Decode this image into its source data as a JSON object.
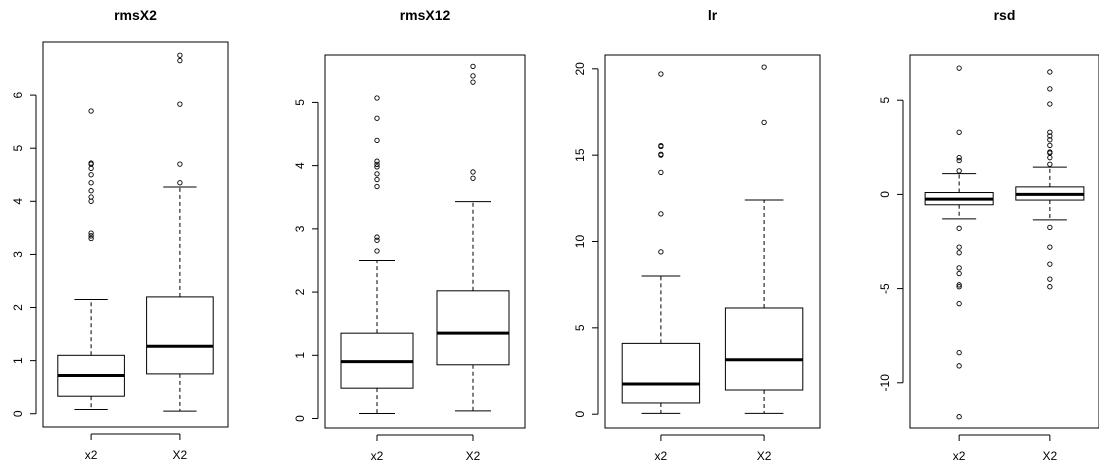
{
  "chart_data": [
    {
      "type": "boxplot",
      "title": "rmsX2",
      "categories": [
        "x2",
        "X2"
      ],
      "yticks": [
        0,
        1,
        2,
        3,
        4,
        5,
        6
      ],
      "ylim": [
        -0.25,
        7.0
      ],
      "boxes": [
        {
          "name": "x2",
          "whisker_low": 0.08,
          "q1": 0.33,
          "median": 0.72,
          "q3": 1.1,
          "whisker_high": 2.15,
          "outliers": [
            3.3,
            3.35,
            3.4,
            4.0,
            4.08,
            4.2,
            4.35,
            4.5,
            4.62,
            4.7,
            4.72,
            5.7
          ]
        },
        {
          "name": "X2",
          "whisker_low": 0.05,
          "q1": 0.75,
          "median": 1.27,
          "q3": 2.2,
          "whisker_high": 4.27,
          "outliers": [
            4.35,
            4.7,
            5.83,
            6.65,
            6.75
          ]
        }
      ]
    },
    {
      "type": "boxplot",
      "title": "rmsX12",
      "categories": [
        "x2",
        "X2"
      ],
      "yticks": [
        0,
        1,
        2,
        3,
        4,
        5
      ],
      "ylim": [
        -0.15,
        5.75
      ],
      "boxes": [
        {
          "name": "x2",
          "whisker_low": 0.08,
          "q1": 0.48,
          "median": 0.9,
          "q3": 1.35,
          "whisker_high": 2.5,
          "outliers": [
            2.65,
            2.82,
            2.87,
            3.67,
            3.78,
            3.87,
            3.98,
            4.02,
            4.07,
            4.4,
            4.75,
            5.07
          ]
        },
        {
          "name": "X2",
          "whisker_low": 0.12,
          "q1": 0.85,
          "median": 1.35,
          "q3": 2.02,
          "whisker_high": 3.43,
          "outliers": [
            3.8,
            3.9,
            5.32,
            5.42,
            5.57
          ]
        }
      ]
    },
    {
      "type": "boxplot",
      "title": "lr",
      "categories": [
        "x2",
        "X2"
      ],
      "yticks": [
        0,
        5,
        10,
        15,
        20
      ],
      "ylim": [
        -0.8,
        20.8
      ],
      "boxes": [
        {
          "name": "x2",
          "whisker_low": 0.05,
          "q1": 0.65,
          "median": 1.75,
          "q3": 4.1,
          "whisker_high": 8.0,
          "outliers": [
            9.4,
            11.6,
            14.0,
            15.0,
            15.05,
            15.5,
            15.55,
            19.7
          ]
        },
        {
          "name": "X2",
          "whisker_low": 0.05,
          "q1": 1.4,
          "median": 3.15,
          "q3": 6.15,
          "whisker_high": 12.4,
          "outliers": [
            16.9,
            20.1
          ]
        }
      ]
    },
    {
      "type": "boxplot",
      "title": "rsd",
      "categories": [
        "x2",
        "X2"
      ],
      "yticks": [
        -10,
        -5,
        0,
        5
      ],
      "ylim": [
        -12.4,
        7.4
      ],
      "boxes": [
        {
          "name": "x2",
          "whisker_low": -1.3,
          "q1": -0.55,
          "median": -0.25,
          "q3": 0.1,
          "whisker_high": 1.1,
          "outliers": [
            1.25,
            1.8,
            1.95,
            3.3,
            6.7,
            -1.8,
            -2.8,
            -3.1,
            -3.9,
            -4.2,
            -4.8,
            -4.9,
            -5.8,
            -8.4,
            -9.1,
            -11.8
          ]
        },
        {
          "name": "X2",
          "whisker_low": -1.35,
          "q1": -0.3,
          "median": 0.0,
          "q3": 0.4,
          "whisker_high": 1.45,
          "outliers": [
            1.6,
            1.95,
            2.2,
            2.25,
            2.6,
            2.9,
            3.1,
            3.3,
            4.8,
            5.6,
            6.5,
            -1.75,
            -2.8,
            -3.7,
            -4.5,
            -4.9
          ]
        }
      ]
    }
  ]
}
